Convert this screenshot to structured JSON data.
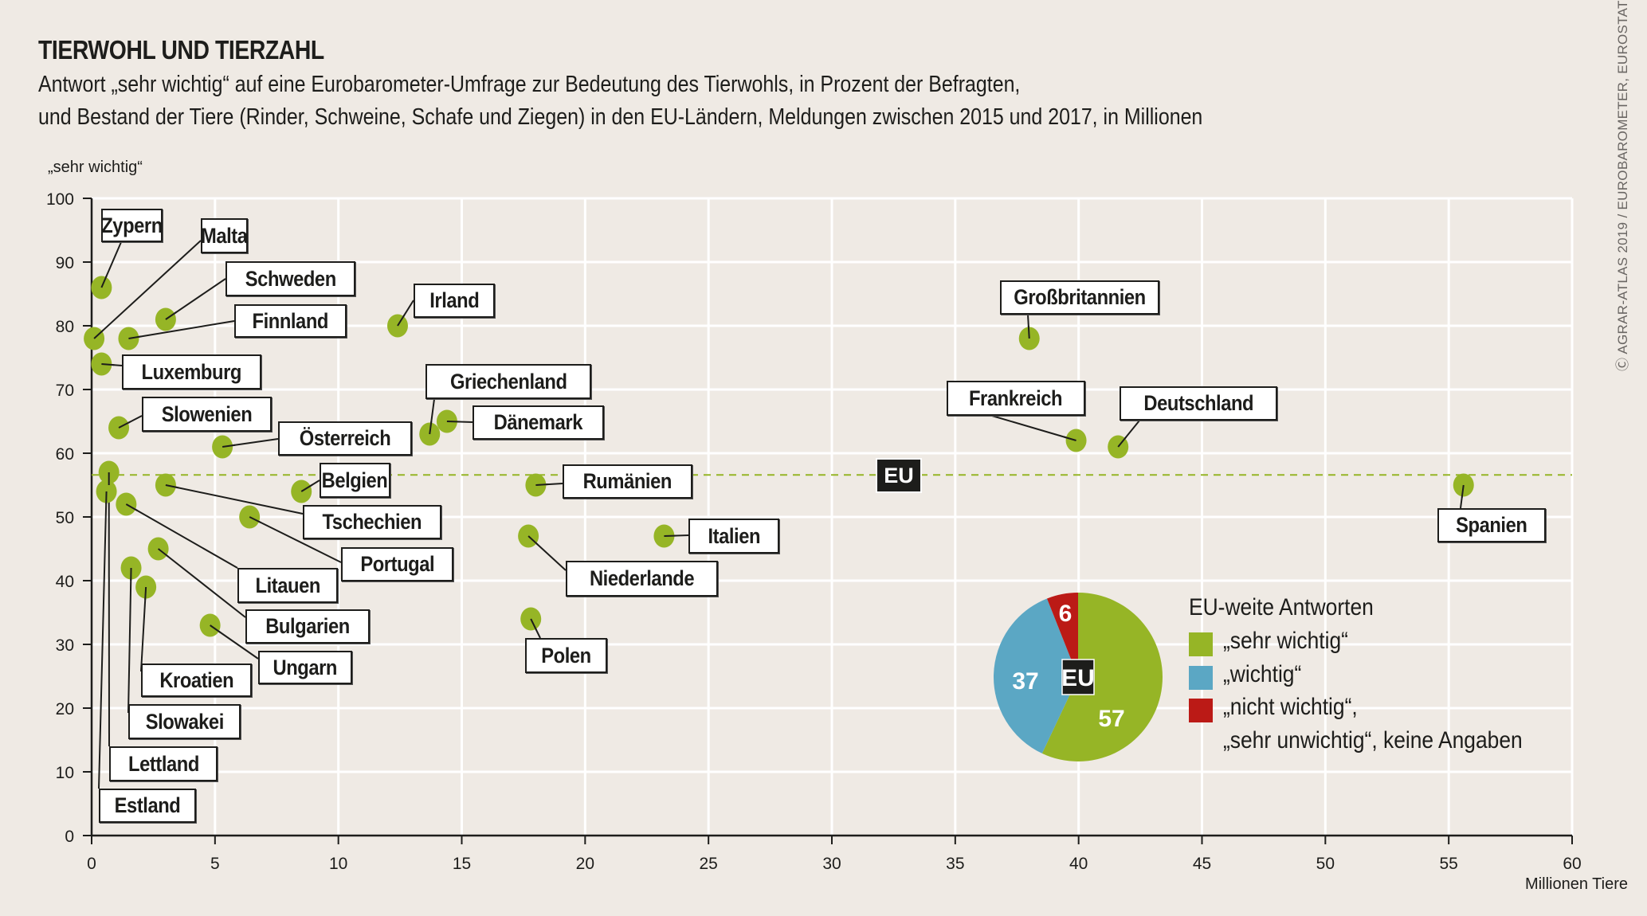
{
  "header": {
    "title": "TIERWOHL UND TIERZAHL",
    "subtitle_line1": "Antwort „sehr wichtig“ auf eine Eurobarometer-Umfrage zur Bedeutung des Tierwohls, in Prozent der Befragten,",
    "subtitle_line2": "und Bestand der Tiere (Rinder, Schweine, Schafe und Ziegen) in den EU-Ländern, Meldungen zwischen 2015 und 2017, in Millionen"
  },
  "credit": "Ⓒ AGRAR-ATLAS 2019 / EUROBAROMETER, EUROSTAT",
  "colors": {
    "background": "#efeae4",
    "dot": "#96b526",
    "sehr_wichtig": "#96b526",
    "wichtig": "#5ba7c4",
    "nicht_wichtig": "#bb1a16",
    "gridline": "#ffffff",
    "axis": "#1d1d1b"
  },
  "chart_data": [
    {
      "type": "scatter",
      "title": "TIERWOHL UND TIERZAHL",
      "xlabel": "Millionen Tiere",
      "ylabel": "„sehr wichtig“",
      "xlim": [
        0,
        60
      ],
      "ylim": [
        0,
        100
      ],
      "xticks": [
        0,
        5,
        10,
        15,
        20,
        25,
        30,
        35,
        40,
        45,
        50,
        55,
        60
      ],
      "yticks": [
        0,
        10,
        20,
        30,
        40,
        50,
        60,
        70,
        80,
        90,
        100
      ],
      "grid": true,
      "reference_line": {
        "label": "EU",
        "y": 57,
        "style": "dashed"
      },
      "points": [
        {
          "label": "Zypern",
          "x": 0.4,
          "y": 86
        },
        {
          "label": "Malta",
          "x": 0.1,
          "y": 78
        },
        {
          "label": "Schweden",
          "x": 3.0,
          "y": 81
        },
        {
          "label": "Finnland",
          "x": 1.5,
          "y": 78
        },
        {
          "label": "Luxemburg",
          "x": 0.4,
          "y": 74
        },
        {
          "label": "Slowenien",
          "x": 1.1,
          "y": 64
        },
        {
          "label": "Österreich",
          "x": 5.3,
          "y": 61
        },
        {
          "label": "Irland",
          "x": 12.4,
          "y": 80
        },
        {
          "label": "Griechenland",
          "x": 13.7,
          "y": 63
        },
        {
          "label": "Dänemark",
          "x": 14.4,
          "y": 65
        },
        {
          "label": "Lettland",
          "x": 0.7,
          "y": 57
        },
        {
          "label": "Estland",
          "x": 0.6,
          "y": 54
        },
        {
          "label": "Tschechien",
          "x": 3.0,
          "y": 55
        },
        {
          "label": "Belgien",
          "x": 8.5,
          "y": 54
        },
        {
          "label": "Litauen",
          "x": 1.4,
          "y": 52
        },
        {
          "label": "Portugal",
          "x": 6.4,
          "y": 50
        },
        {
          "label": "Bulgarien",
          "x": 2.7,
          "y": 45
        },
        {
          "label": "Slowakei",
          "x": 1.6,
          "y": 42
        },
        {
          "label": "Kroatien",
          "x": 2.2,
          "y": 39
        },
        {
          "label": "Ungarn",
          "x": 4.8,
          "y": 33
        },
        {
          "label": "Rumänien",
          "x": 18.0,
          "y": 55
        },
        {
          "label": "Italien",
          "x": 23.2,
          "y": 47
        },
        {
          "label": "Niederlande",
          "x": 17.7,
          "y": 47
        },
        {
          "label": "Polen",
          "x": 17.8,
          "y": 34
        },
        {
          "label": "Großbritannien",
          "x": 38.0,
          "y": 78
        },
        {
          "label": "Frankreich",
          "x": 39.9,
          "y": 62
        },
        {
          "label": "Deutschland",
          "x": 41.6,
          "y": 61
        },
        {
          "label": "Spanien",
          "x": 55.6,
          "y": 55
        }
      ]
    },
    {
      "type": "pie",
      "title": "EU-weite Antworten",
      "center_label": "EU",
      "slices": [
        {
          "name": "„sehr wichtig“",
          "value": 57,
          "color": "#96b526"
        },
        {
          "name": "„wichtig“",
          "value": 37,
          "color": "#5ba7c4"
        },
        {
          "name": "„nicht wichtig“, „sehr unwichtig“, keine Angaben",
          "value": 6,
          "color": "#bb1a16"
        }
      ]
    }
  ],
  "legend": {
    "title": "EU-weite Antworten",
    "items": [
      {
        "line1": "„sehr wichtig“",
        "line2": ""
      },
      {
        "line1": "„wichtig“",
        "line2": ""
      },
      {
        "line1": "„nicht wichtig“,",
        "line2": "„sehr unwichtig“, keine Angaben"
      }
    ]
  },
  "eu_label": "EU"
}
